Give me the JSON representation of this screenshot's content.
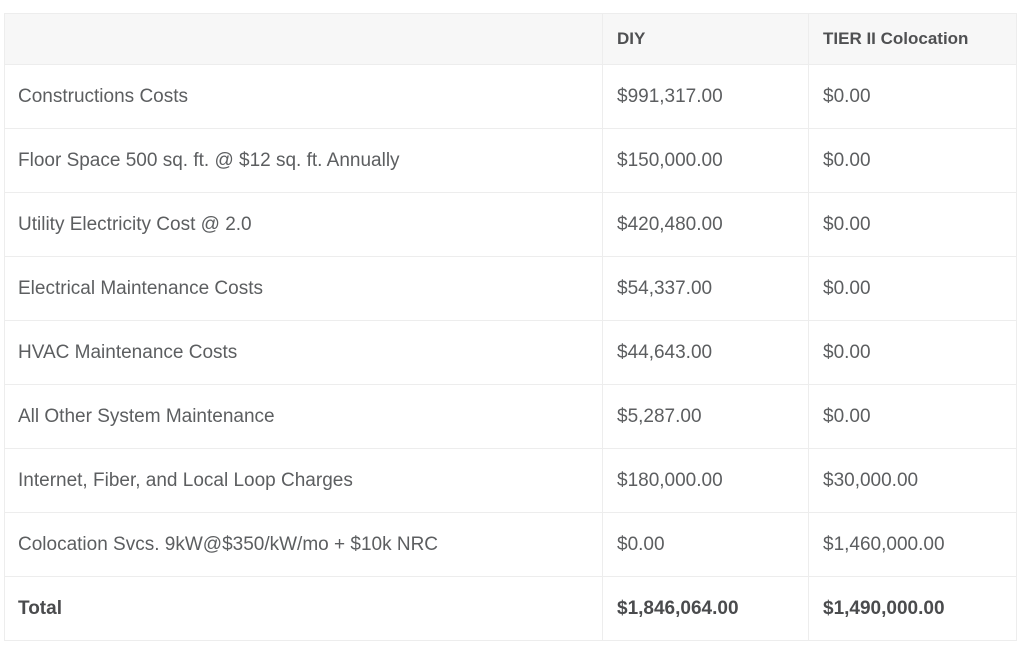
{
  "table": {
    "columns": [
      {
        "label": ""
      },
      {
        "label": "DIY"
      },
      {
        "label": "TIER II Colocation"
      }
    ],
    "rows": [
      {
        "label": "Constructions Costs",
        "diy": "$991,317.00",
        "tier2": "$0.00",
        "bold": false
      },
      {
        "label": "Floor Space 500 sq. ft. @ $12 sq. ft. Annually",
        "diy": "$150,000.00",
        "tier2": "$0.00",
        "bold": false
      },
      {
        "label": "Utility Electricity Cost @ 2.0",
        "diy": "$420,480.00",
        "tier2": "$0.00",
        "bold": false
      },
      {
        "label": "Electrical Maintenance Costs",
        "diy": "$54,337.00",
        "tier2": "$0.00",
        "bold": false
      },
      {
        "label": "HVAC Maintenance Costs",
        "diy": "$44,643.00",
        "tier2": "$0.00",
        "bold": false
      },
      {
        "label": "All Other System Maintenance",
        "diy": "$5,287.00",
        "tier2": "$0.00",
        "bold": false
      },
      {
        "label": "Internet, Fiber, and Local Loop Charges",
        "diy": "$180,000.00",
        "tier2": "$30,000.00",
        "bold": false
      },
      {
        "label": "Colocation Svcs. 9kW@$350/kW/mo + $10k NRC",
        "diy": "$0.00",
        "tier2": "$1,460,000.00",
        "bold": false
      },
      {
        "label": "Total",
        "diy": "$1,846,064.00",
        "tier2": "$1,490,000.00",
        "bold": true
      }
    ],
    "colors": {
      "header_bg": "#f7f7f7",
      "border": "#ededed",
      "body_text": "#5c5e60",
      "bold_text": "#4a4b4d"
    }
  },
  "chart_data": {
    "type": "table",
    "title": "",
    "categories": [
      "Constructions Costs",
      "Floor Space 500 sq. ft. @ $12 sq. ft. Annually",
      "Utility Electricity Cost @ 2.0",
      "Electrical Maintenance Costs",
      "HVAC Maintenance Costs",
      "All Other System Maintenance",
      "Internet, Fiber, and Local Loop Charges",
      "Colocation Svcs. 9kW@$350/kW/mo + $10k NRC",
      "Total"
    ],
    "series": [
      {
        "name": "DIY",
        "values": [
          991317.0,
          150000.0,
          420480.0,
          54337.0,
          44643.0,
          5287.0,
          180000.0,
          0.0,
          1846064.0
        ]
      },
      {
        "name": "TIER II Colocation",
        "values": [
          0.0,
          0.0,
          0.0,
          0.0,
          0.0,
          0.0,
          30000.0,
          1460000.0,
          1490000.0
        ]
      }
    ]
  }
}
